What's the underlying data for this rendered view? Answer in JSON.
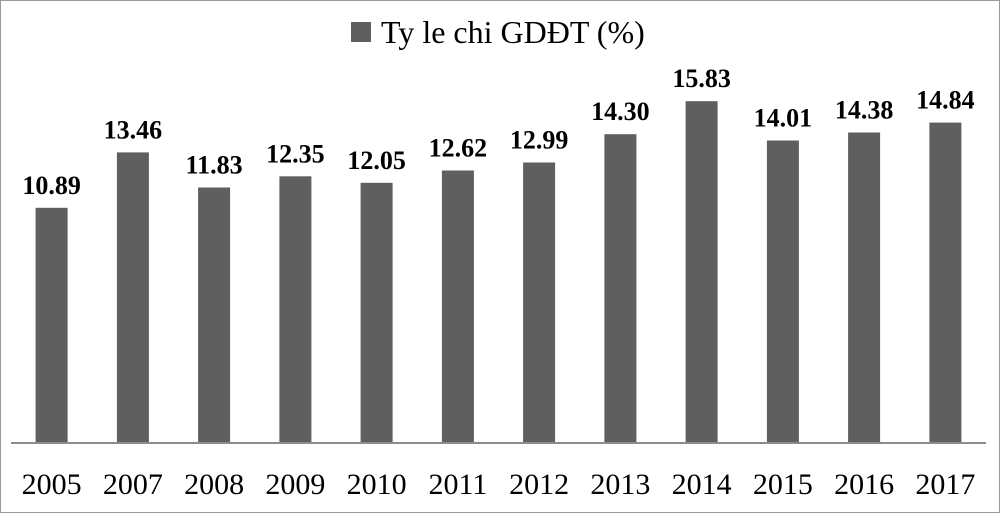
{
  "chart_data": {
    "type": "bar",
    "categories": [
      "2005",
      "2007",
      "2008",
      "2009",
      "2010",
      "2011",
      "2012",
      "2013",
      "2014",
      "2015",
      "2016",
      "2017"
    ],
    "series": [
      {
        "name": "Ty le chi GDĐT (%)",
        "values": [
          10.89,
          13.46,
          11.83,
          12.35,
          12.05,
          12.62,
          12.99,
          14.3,
          15.83,
          14.01,
          14.38,
          14.84
        ],
        "labels": [
          "10.89",
          "13.46",
          "11.83",
          "12.35",
          "12.05",
          "12.62",
          "12.99",
          "14.30",
          "15.83",
          "14.01",
          "14.38",
          "14.84"
        ],
        "color": "#5f5f5f"
      }
    ],
    "ylim": [
      0,
      18.2
    ],
    "grid": false,
    "legend_position": "top-center",
    "axis_color": "#8c8c8c"
  }
}
